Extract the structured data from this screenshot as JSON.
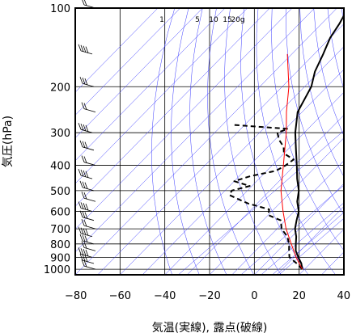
{
  "chart_data": {
    "type": "skew-t",
    "xlabel": "気温(実線), 露点(破線)",
    "ylabel": "気圧(hPa)",
    "xlim": [
      -80,
      40
    ],
    "ylim": [
      1050,
      100
    ],
    "y_scale": "log",
    "x_ticks": [
      -80,
      -60,
      -40,
      -20,
      0,
      20,
      40
    ],
    "y_ticks": [
      100,
      200,
      300,
      400,
      500,
      600,
      700,
      800,
      900,
      1000
    ],
    "grid": true,
    "mixing_ratio_labels": [
      "1",
      "5",
      "10",
      "15",
      "20g"
    ],
    "series": [
      {
        "style": "solid",
        "color": "#000000",
        "pressure": [
          1000,
          950,
          900,
          850,
          800,
          750,
          700,
          650,
          600,
          550,
          500,
          450,
          400,
          350,
          300,
          250,
          200,
          175,
          150,
          130,
          115,
          105,
          100
        ],
        "temperature": [
          19,
          16,
          12,
          8,
          5,
          2,
          -2,
          -5,
          -8,
          -13,
          -17,
          -23,
          -29,
          -36,
          -44,
          -52,
          -57,
          -62,
          -66,
          -70,
          -72,
          -74,
          -75
        ]
      },
      {
        "style": "dashed",
        "color": "#000000",
        "pressure": [
          1000,
          950,
          900,
          850,
          800,
          750,
          700,
          650,
          620,
          590,
          560,
          540,
          520,
          500,
          480,
          460,
          440,
          420,
          400,
          380,
          360,
          340,
          320,
          300,
          290,
          285,
          280
        ],
        "temperature": [
          19,
          14,
          8,
          5,
          2,
          -2,
          -8,
          -12,
          -20,
          -22,
          -34,
          -40,
          -46,
          -47,
          -41,
          -50,
          -45,
          -36,
          -34,
          -33,
          -40,
          -43,
          -48,
          -52,
          -49,
          -62,
          -75
        ]
      },
      {
        "style": "solid",
        "color": "#ff0000",
        "pressure": [
          1000,
          900,
          800,
          700,
          600,
          500,
          400,
          300,
          250,
          200,
          150
        ],
        "temperature": [
          19,
          11,
          3,
          -6,
          -15,
          -25,
          -35,
          -48,
          -57,
          -67,
          -82
        ]
      }
    ],
    "wind_barbs": {
      "pressure": [
        1000,
        950,
        900,
        850,
        800,
        750,
        700,
        650,
        600,
        550,
        500,
        450,
        400,
        350,
        300,
        250,
        200,
        150,
        100
      ]
    }
  }
}
